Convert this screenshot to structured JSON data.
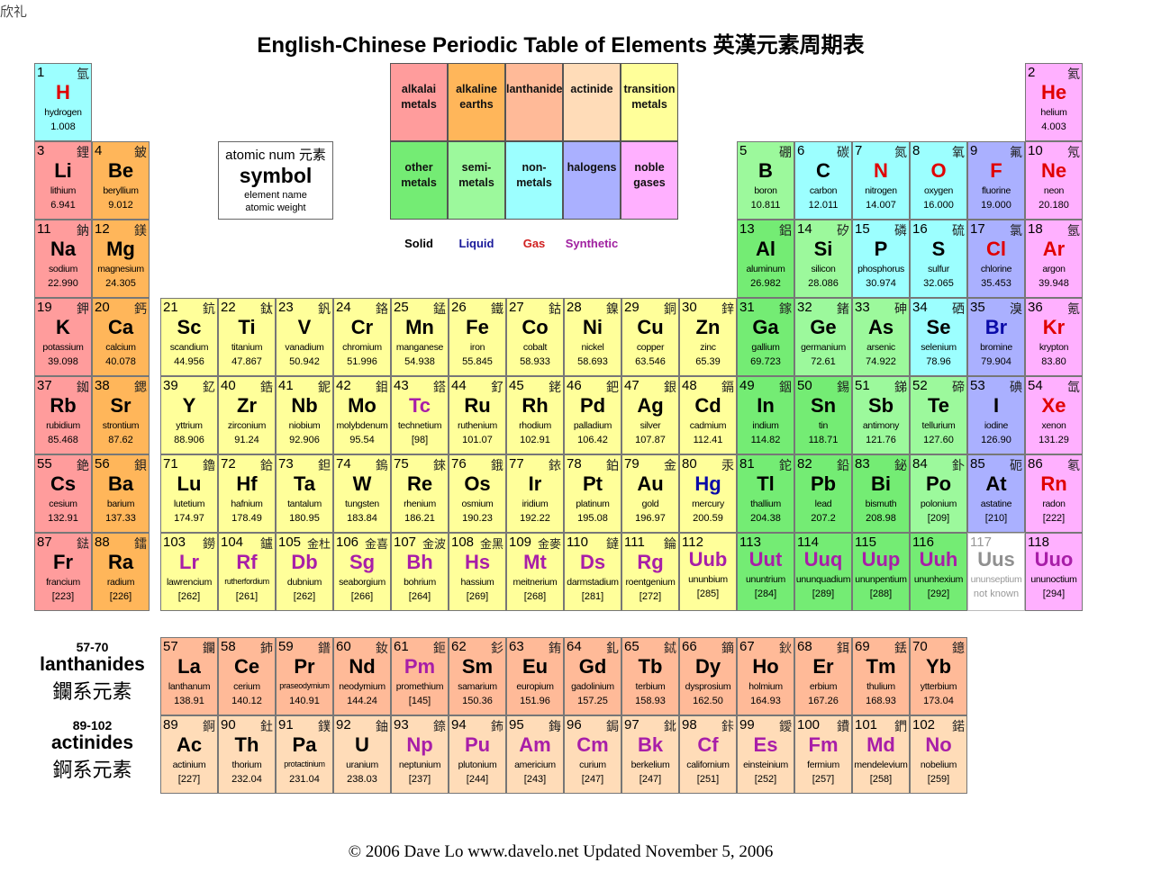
{
  "corner_text": "欣礼",
  "title": "English-Chinese Periodic Table of Elements 英漢元素周期表",
  "key": {
    "atomic_num": "atomic num 元素",
    "symbol": "symbol",
    "element_name": "element name",
    "atomic_weight": "atomic weight"
  },
  "legend": [
    {
      "label": [
        "alkalai",
        "metals"
      ],
      "color": "#ff9c9c"
    },
    {
      "label": [
        "alkaline",
        "earths"
      ],
      "color": "#ffb65a"
    },
    {
      "label": [
        "lanthanide"
      ],
      "color": "#ffba98"
    },
    {
      "label": [
        "actinide"
      ],
      "color": "#ffdcb8"
    },
    {
      "label": [
        "transition",
        "metals"
      ],
      "color": "#ffff9a"
    },
    {
      "label": [
        "other",
        "metals"
      ],
      "color": "#74ec74"
    },
    {
      "label": [
        "semi-",
        "metals"
      ],
      "color": "#9cf99c"
    },
    {
      "label": [
        "non-",
        "metals"
      ],
      "color": "#9cffff"
    },
    {
      "label": [
        "halogens"
      ],
      "color": "#aab0ff"
    },
    {
      "label": [
        "noble",
        "gases"
      ],
      "color": "#ffb0ff"
    }
  ],
  "states": [
    {
      "label": "Solid",
      "color": "#000000"
    },
    {
      "label": "Liquid",
      "color": "#1a1a9a"
    },
    {
      "label": "Gas",
      "color": "#d02020"
    },
    {
      "label": "Synthetic",
      "color": "#a020a0"
    }
  ],
  "category_colors": {
    "am": "#ff9c9c",
    "ae": "#ffb65a",
    "la": "#ffba98",
    "ac": "#ffdcb8",
    "tm": "#ffff9a",
    "om": "#74ec74",
    "sm": "#9cf99c",
    "nm": "#9cffff",
    "ha": "#aab0ff",
    "ng": "#ffb0ff",
    "uk": "#ffffff"
  },
  "state_colors": {
    "s": "#000000",
    "l": "#0a0aa8",
    "g": "#e00000",
    "x": "#a81ea8",
    "u": "#909090"
  },
  "series": [
    {
      "range": "57-70",
      "label": "lanthanides",
      "zh": "鑭系元素"
    },
    {
      "range": "89-102",
      "label": "actinides",
      "zh": "錒系元素"
    }
  ],
  "elements": [
    [
      1,
      "氫",
      "H",
      "hydrogen",
      "1.008",
      "nm",
      "g"
    ],
    [
      2,
      "氦",
      "He",
      "helium",
      "4.003",
      "ng",
      "g"
    ],
    [
      3,
      "鋰",
      "Li",
      "lithium",
      "6.941",
      "am",
      "s"
    ],
    [
      4,
      "鈹",
      "Be",
      "beryllium",
      "9.012",
      "ae",
      "s"
    ],
    [
      5,
      "硼",
      "B",
      "boron",
      "10.811",
      "sm",
      "s"
    ],
    [
      6,
      "碳",
      "C",
      "carbon",
      "12.011",
      "nm",
      "s"
    ],
    [
      7,
      "氮",
      "N",
      "nitrogen",
      "14.007",
      "nm",
      "g"
    ],
    [
      8,
      "氧",
      "O",
      "oxygen",
      "16.000",
      "nm",
      "g"
    ],
    [
      9,
      "氟",
      "F",
      "fluorine",
      "19.000",
      "ha",
      "g"
    ],
    [
      10,
      "氖",
      "Ne",
      "neon",
      "20.180",
      "ng",
      "g"
    ],
    [
      11,
      "鈉",
      "Na",
      "sodium",
      "22.990",
      "am",
      "s"
    ],
    [
      12,
      "鎂",
      "Mg",
      "magnesium",
      "24.305",
      "ae",
      "s"
    ],
    [
      13,
      "鋁",
      "Al",
      "aluminum",
      "26.982",
      "om",
      "s"
    ],
    [
      14,
      "矽",
      "Si",
      "silicon",
      "28.086",
      "sm",
      "s"
    ],
    [
      15,
      "磷",
      "P",
      "phosphorus",
      "30.974",
      "nm",
      "s"
    ],
    [
      16,
      "硫",
      "S",
      "sulfur",
      "32.065",
      "nm",
      "s"
    ],
    [
      17,
      "氯",
      "Cl",
      "chlorine",
      "35.453",
      "ha",
      "g"
    ],
    [
      18,
      "氬",
      "Ar",
      "argon",
      "39.948",
      "ng",
      "g"
    ],
    [
      19,
      "鉀",
      "K",
      "potassium",
      "39.098",
      "am",
      "s"
    ],
    [
      20,
      "鈣",
      "Ca",
      "calcium",
      "40.078",
      "ae",
      "s"
    ],
    [
      21,
      "鈧",
      "Sc",
      "scandium",
      "44.956",
      "tm",
      "s"
    ],
    [
      22,
      "鈦",
      "Ti",
      "titanium",
      "47.867",
      "tm",
      "s"
    ],
    [
      23,
      "釩",
      "V",
      "vanadium",
      "50.942",
      "tm",
      "s"
    ],
    [
      24,
      "鉻",
      "Cr",
      "chromium",
      "51.996",
      "tm",
      "s"
    ],
    [
      25,
      "錳",
      "Mn",
      "manganese",
      "54.938",
      "tm",
      "s"
    ],
    [
      26,
      "鐵",
      "Fe",
      "iron",
      "55.845",
      "tm",
      "s"
    ],
    [
      27,
      "鈷",
      "Co",
      "cobalt",
      "58.933",
      "tm",
      "s"
    ],
    [
      28,
      "鎳",
      "Ni",
      "nickel",
      "58.693",
      "tm",
      "s"
    ],
    [
      29,
      "銅",
      "Cu",
      "copper",
      "63.546",
      "tm",
      "s"
    ],
    [
      30,
      "鋅",
      "Zn",
      "zinc",
      "65.39",
      "tm",
      "s"
    ],
    [
      31,
      "鎵",
      "Ga",
      "gallium",
      "69.723",
      "om",
      "s"
    ],
    [
      32,
      "鍺",
      "Ge",
      "germanium",
      "72.61",
      "sm",
      "s"
    ],
    [
      33,
      "砷",
      "As",
      "arsenic",
      "74.922",
      "sm",
      "s"
    ],
    [
      34,
      "硒",
      "Se",
      "selenium",
      "78.96",
      "nm",
      "s"
    ],
    [
      35,
      "溴",
      "Br",
      "bromine",
      "79.904",
      "ha",
      "l"
    ],
    [
      36,
      "氪",
      "Kr",
      "krypton",
      "83.80",
      "ng",
      "g"
    ],
    [
      37,
      "銣",
      "Rb",
      "rubidium",
      "85.468",
      "am",
      "s"
    ],
    [
      38,
      "鍶",
      "Sr",
      "strontium",
      "87.62",
      "ae",
      "s"
    ],
    [
      39,
      "釔",
      "Y",
      "yttrium",
      "88.906",
      "tm",
      "s"
    ],
    [
      40,
      "鋯",
      "Zr",
      "zirconium",
      "91.24",
      "tm",
      "s"
    ],
    [
      41,
      "鈮",
      "Nb",
      "niobium",
      "92.906",
      "tm",
      "s"
    ],
    [
      42,
      "鉬",
      "Mo",
      "molybdenum",
      "95.54",
      "tm",
      "s"
    ],
    [
      43,
      "鎝",
      "Tc",
      "technetium",
      "[98]",
      "tm",
      "x"
    ],
    [
      44,
      "釕",
      "Ru",
      "ruthenium",
      "101.07",
      "tm",
      "s"
    ],
    [
      45,
      "銠",
      "Rh",
      "rhodium",
      "102.91",
      "tm",
      "s"
    ],
    [
      46,
      "鈀",
      "Pd",
      "palladium",
      "106.42",
      "tm",
      "s"
    ],
    [
      47,
      "銀",
      "Ag",
      "silver",
      "107.87",
      "tm",
      "s"
    ],
    [
      48,
      "鎘",
      "Cd",
      "cadmium",
      "112.41",
      "tm",
      "s"
    ],
    [
      49,
      "銦",
      "In",
      "indium",
      "114.82",
      "om",
      "s"
    ],
    [
      50,
      "錫",
      "Sn",
      "tin",
      "118.71",
      "om",
      "s"
    ],
    [
      51,
      "銻",
      "Sb",
      "antimony",
      "121.76",
      "sm",
      "s"
    ],
    [
      52,
      "碲",
      "Te",
      "tellurium",
      "127.60",
      "sm",
      "s"
    ],
    [
      53,
      "碘",
      "I",
      "iodine",
      "126.90",
      "ha",
      "s"
    ],
    [
      54,
      "氙",
      "Xe",
      "xenon",
      "131.29",
      "ng",
      "g"
    ],
    [
      55,
      "銫",
      "Cs",
      "cesium",
      "132.91",
      "am",
      "s"
    ],
    [
      56,
      "鋇",
      "Ba",
      "barium",
      "137.33",
      "ae",
      "s"
    ],
    [
      57,
      "鑭",
      "La",
      "lanthanum",
      "138.91",
      "la",
      "s"
    ],
    [
      58,
      "鈰",
      "Ce",
      "cerium",
      "140.12",
      "la",
      "s"
    ],
    [
      59,
      "鐠",
      "Pr",
      "praseodymium",
      "140.91",
      "la",
      "s"
    ],
    [
      60,
      "釹",
      "Nd",
      "neodymium",
      "144.24",
      "la",
      "s"
    ],
    [
      61,
      "鉕",
      "Pm",
      "promethium",
      "[145]",
      "la",
      "x"
    ],
    [
      62,
      "釤",
      "Sm",
      "samarium",
      "150.36",
      "la",
      "s"
    ],
    [
      63,
      "銪",
      "Eu",
      "europium",
      "151.96",
      "la",
      "s"
    ],
    [
      64,
      "釓",
      "Gd",
      "gadolinium",
      "157.25",
      "la",
      "s"
    ],
    [
      65,
      "鋱",
      "Tb",
      "terbium",
      "158.93",
      "la",
      "s"
    ],
    [
      66,
      "鏑",
      "Dy",
      "dysprosium",
      "162.50",
      "la",
      "s"
    ],
    [
      67,
      "鈥",
      "Ho",
      "holmium",
      "164.93",
      "la",
      "s"
    ],
    [
      68,
      "鉺",
      "Er",
      "erbium",
      "167.26",
      "la",
      "s"
    ],
    [
      69,
      "銩",
      "Tm",
      "thulium",
      "168.93",
      "la",
      "s"
    ],
    [
      70,
      "鐿",
      "Yb",
      "ytterbium",
      "173.04",
      "la",
      "s"
    ],
    [
      71,
      "鑥",
      "Lu",
      "lutetium",
      "174.97",
      "tm",
      "s"
    ],
    [
      72,
      "鉿",
      "Hf",
      "hafnium",
      "178.49",
      "tm",
      "s"
    ],
    [
      73,
      "鉭",
      "Ta",
      "tantalum",
      "180.95",
      "tm",
      "s"
    ],
    [
      74,
      "鎢",
      "W",
      "tungsten",
      "183.84",
      "tm",
      "s"
    ],
    [
      75,
      "錸",
      "Re",
      "rhenium",
      "186.21",
      "tm",
      "s"
    ],
    [
      76,
      "鋨",
      "Os",
      "osmium",
      "190.23",
      "tm",
      "s"
    ],
    [
      77,
      "銥",
      "Ir",
      "iridium",
      "192.22",
      "tm",
      "s"
    ],
    [
      78,
      "鉑",
      "Pt",
      "platinum",
      "195.08",
      "tm",
      "s"
    ],
    [
      79,
      "金",
      "Au",
      "gold",
      "196.97",
      "tm",
      "s"
    ],
    [
      80,
      "汞",
      "Hg",
      "mercury",
      "200.59",
      "tm",
      "l"
    ],
    [
      81,
      "鉈",
      "Tl",
      "thallium",
      "204.38",
      "om",
      "s"
    ],
    [
      82,
      "鉛",
      "Pb",
      "lead",
      "207.2",
      "om",
      "s"
    ],
    [
      83,
      "鉍",
      "Bi",
      "bismuth",
      "208.98",
      "om",
      "s"
    ],
    [
      84,
      "釙",
      "Po",
      "polonium",
      "[209]",
      "sm",
      "s"
    ],
    [
      85,
      "砈",
      "At",
      "astatine",
      "[210]",
      "ha",
      "s"
    ],
    [
      86,
      "氡",
      "Rn",
      "radon",
      "[222]",
      "ng",
      "g"
    ],
    [
      87,
      "鍅",
      "Fr",
      "francium",
      "[223]",
      "am",
      "s"
    ],
    [
      88,
      "鐳",
      "Ra",
      "radium",
      "[226]",
      "ae",
      "s"
    ],
    [
      89,
      "錒",
      "Ac",
      "actinium",
      "[227]",
      "ac",
      "s"
    ],
    [
      90,
      "釷",
      "Th",
      "thorium",
      "232.04",
      "ac",
      "s"
    ],
    [
      91,
      "鏷",
      "Pa",
      "protactinium",
      "231.04",
      "ac",
      "s"
    ],
    [
      92,
      "鈾",
      "U",
      "uranium",
      "238.03",
      "ac",
      "s"
    ],
    [
      93,
      "錼",
      "Np",
      "neptunium",
      "[237]",
      "ac",
      "x"
    ],
    [
      94,
      "鈽",
      "Pu",
      "plutonium",
      "[244]",
      "ac",
      "x"
    ],
    [
      95,
      "鋂",
      "Am",
      "americium",
      "[243]",
      "ac",
      "x"
    ],
    [
      96,
      "鋦",
      "Cm",
      "curium",
      "[247]",
      "ac",
      "x"
    ],
    [
      97,
      "鉳",
      "Bk",
      "berkelium",
      "[247]",
      "ac",
      "x"
    ],
    [
      98,
      "鉲",
      "Cf",
      "californium",
      "[251]",
      "ac",
      "x"
    ],
    [
      99,
      "鑀",
      "Es",
      "einsteinium",
      "[252]",
      "ac",
      "x"
    ],
    [
      100,
      "鐨",
      "Fm",
      "fermium",
      "[257]",
      "ac",
      "x"
    ],
    [
      101,
      "鍆",
      "Md",
      "mendelevium",
      "[258]",
      "ac",
      "x"
    ],
    [
      102,
      "鍩",
      "No",
      "nobelium",
      "[259]",
      "ac",
      "x"
    ],
    [
      103,
      "鐒",
      "Lr",
      "lawrencium",
      "[262]",
      "tm",
      "x"
    ],
    [
      104,
      "鑪",
      "Rf",
      "rutherfordium",
      "[261]",
      "tm",
      "x"
    ],
    [
      105,
      "金杜",
      "Db",
      "dubnium",
      "[262]",
      "tm",
      "x"
    ],
    [
      106,
      "金喜",
      "Sg",
      "seaborgium",
      "[266]",
      "tm",
      "x"
    ],
    [
      107,
      "金波",
      "Bh",
      "bohrium",
      "[264]",
      "tm",
      "x"
    ],
    [
      108,
      "金黑",
      "Hs",
      "hassium",
      "[269]",
      "tm",
      "x"
    ],
    [
      109,
      "金麥",
      "Mt",
      "meitnerium",
      "[268]",
      "tm",
      "x"
    ],
    [
      110,
      "鐽",
      "Ds",
      "darmstadium",
      "[281]",
      "tm",
      "x"
    ],
    [
      111,
      "錀",
      "Rg",
      "roentgenium",
      "[272]",
      "tm",
      "x"
    ],
    [
      112,
      "",
      "Uub",
      "ununbium",
      "[285]",
      "tm",
      "x"
    ],
    [
      113,
      "",
      "Uut",
      "ununtrium",
      "[284]",
      "om",
      "x"
    ],
    [
      114,
      "",
      "Uuq",
      "ununquadium",
      "[289]",
      "om",
      "x"
    ],
    [
      115,
      "",
      "Uup",
      "ununpentium",
      "[288]",
      "om",
      "x"
    ],
    [
      116,
      "",
      "Uuh",
      "ununhexium",
      "[292]",
      "om",
      "x"
    ],
    [
      117,
      "",
      "Uus",
      "ununseptium",
      "not known",
      "uk",
      "u"
    ],
    [
      118,
      "",
      "Uuo",
      "ununoctium",
      "[294]",
      "ng",
      "x"
    ]
  ],
  "footer": "© 2006 Dave Lo   www.davelo.net   Updated November 5, 2006"
}
